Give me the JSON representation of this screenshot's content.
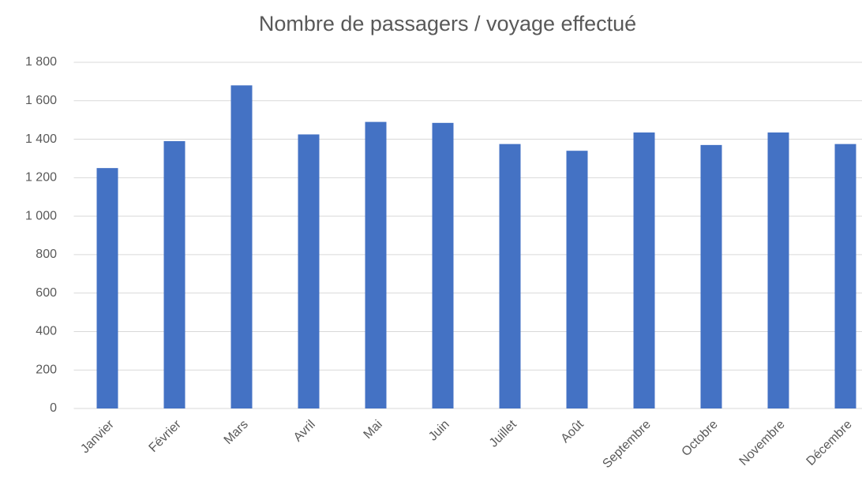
{
  "chart_data": {
    "type": "bar",
    "title": "Nombre de passagers / voyage effectué",
    "categories": [
      "Janvier",
      "Février",
      "Mars",
      "Avril",
      "Mai",
      "Juin",
      "Juillet",
      "Août",
      "Septembre",
      "Octobre",
      "Novembre",
      "Décembre"
    ],
    "values": [
      1250,
      1390,
      1680,
      1425,
      1490,
      1485,
      1375,
      1340,
      1435,
      1370,
      1435,
      1375
    ],
    "color": "#4472c4",
    "ylim": [
      0,
      1800
    ],
    "yticks": [
      0,
      200,
      400,
      600,
      800,
      {
        "value": 1000,
        "label": "1 000"
      },
      {
        "value": 1200,
        "label": "1 200"
      },
      {
        "value": 1400,
        "label": "1 400"
      },
      {
        "value": 1600,
        "label": "1 600"
      },
      {
        "value": 1800,
        "label": "1 800"
      }
    ],
    "grid": true
  }
}
